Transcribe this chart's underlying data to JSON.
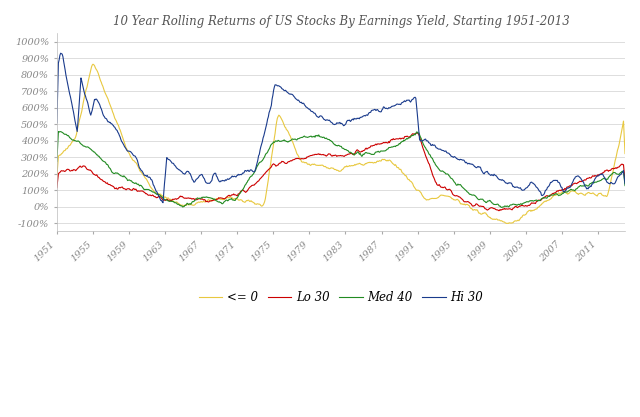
{
  "title": "10 Year Rolling Returns of US Stocks By Earnings Yield, Starting 1951-2013",
  "colors": {
    "le0": "#E8C840",
    "lo30": "#CC0000",
    "med40": "#228B22",
    "hi30": "#1A3B8C"
  },
  "legend_labels": [
    "<= 0",
    "Lo 30",
    "Med 40",
    "Hi 30"
  ],
  "ylim": [
    -150,
    1050
  ],
  "yticks": [
    -100,
    0,
    100,
    200,
    300,
    400,
    500,
    600,
    700,
    800,
    900,
    1000
  ],
  "xticks": [
    1951,
    1955,
    1959,
    1963,
    1967,
    1971,
    1975,
    1979,
    1983,
    1987,
    1991,
    1995,
    1999,
    2003,
    2007,
    2011
  ],
  "background_color": "#FFFFFF",
  "grid_color": "#D0D0D0",
  "title_color": "#555555",
  "tick_color": "#888888"
}
